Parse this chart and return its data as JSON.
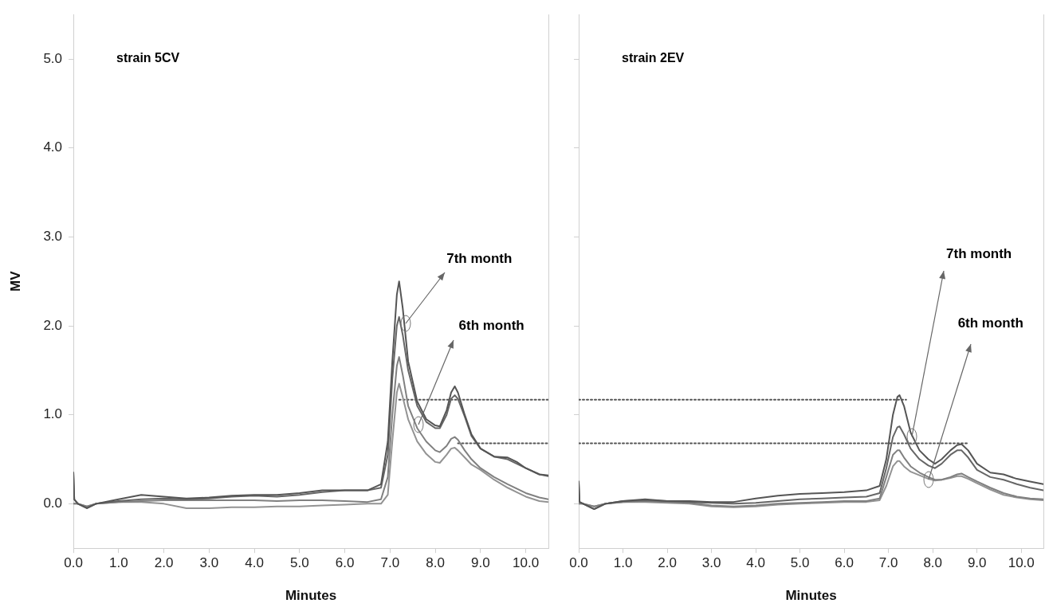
{
  "chart_data": [
    {
      "type": "line",
      "title": "strain 5CV",
      "xlabel": "Minutes",
      "ylabel": "MV",
      "xlim": [
        0,
        10.5
      ],
      "ylim": [
        -0.5,
        5.5
      ],
      "xticks": [
        {
          "value": 0,
          "label": "0.0"
        },
        {
          "value": 1,
          "label": "1.0"
        },
        {
          "value": 2,
          "label": "2.0"
        },
        {
          "value": 3,
          "label": "3.0"
        },
        {
          "value": 4,
          "label": "4.0"
        },
        {
          "value": 5,
          "label": "5.0"
        },
        {
          "value": 6,
          "label": "6.0"
        },
        {
          "value": 7,
          "label": "7.0"
        },
        {
          "value": 8,
          "label": "8.0"
        },
        {
          "value": 9,
          "label": "9.0"
        },
        {
          "value": 10,
          "label": "10.0"
        }
      ],
      "yticks": [
        {
          "value": 0,
          "label": "0.0"
        },
        {
          "value": 1,
          "label": "1.0"
        },
        {
          "value": 2,
          "label": "2.0"
        },
        {
          "value": 3,
          "label": "3.0"
        },
        {
          "value": 4,
          "label": "4.0"
        },
        {
          "value": 5,
          "label": "5.0"
        }
      ],
      "x": [
        0,
        0.02,
        0.1,
        0.3,
        0.5,
        1.0,
        1.5,
        2.0,
        2.5,
        3.0,
        3.5,
        4.0,
        4.5,
        5.0,
        5.5,
        6.0,
        6.5,
        6.8,
        6.95,
        7.05,
        7.15,
        7.2,
        7.28,
        7.4,
        7.6,
        7.8,
        8.0,
        8.1,
        8.25,
        8.35,
        8.43,
        8.5,
        8.65,
        8.8,
        9.0,
        9.3,
        9.6,
        9.8,
        10.0,
        10.3,
        10.5
      ],
      "series": [
        {
          "color": "#555555",
          "values": [
            0.35,
            0.05,
            0,
            -0.05,
            0,
            0.05,
            0.1,
            0.08,
            0.06,
            0.07,
            0.09,
            0.1,
            0.1,
            0.12,
            0.15,
            0.15,
            0.15,
            0.22,
            0.7,
            1.6,
            2.35,
            2.5,
            2.2,
            1.6,
            1.15,
            0.95,
            0.88,
            0.87,
            1.05,
            1.25,
            1.32,
            1.25,
            1.0,
            0.78,
            0.62,
            0.53,
            0.52,
            0.47,
            0.4,
            0.33,
            0.32
          ]
        },
        {
          "color": "#666666",
          "values": [
            0.35,
            0.05,
            0,
            -0.05,
            0,
            0.03,
            0.05,
            0.06,
            0.05,
            0.06,
            0.08,
            0.09,
            0.08,
            0.1,
            0.13,
            0.15,
            0.15,
            0.18,
            0.55,
            1.4,
            2.0,
            2.1,
            1.9,
            1.5,
            1.1,
            0.92,
            0.85,
            0.85,
            1.0,
            1.18,
            1.22,
            1.18,
            0.98,
            0.76,
            0.62,
            0.53,
            0.5,
            0.45,
            0.4,
            0.33,
            0.31
          ]
        },
        {
          "color": "#808080",
          "values": [
            0,
            0,
            0,
            -0.03,
            0,
            0.02,
            0.03,
            0.04,
            0.04,
            0.04,
            0.04,
            0.04,
            0.03,
            0.04,
            0.04,
            0.03,
            0.02,
            0.05,
            0.3,
            1.0,
            1.55,
            1.65,
            1.45,
            1.1,
            0.85,
            0.7,
            0.6,
            0.58,
            0.65,
            0.73,
            0.75,
            0.72,
            0.6,
            0.5,
            0.4,
            0.3,
            0.22,
            0.17,
            0.12,
            0.07,
            0.05
          ]
        },
        {
          "color": "#939393",
          "values": [
            0,
            0,
            0,
            -0.03,
            0,
            0.02,
            0.02,
            0.0,
            -0.05,
            -0.05,
            -0.04,
            -0.04,
            -0.03,
            -0.03,
            -0.02,
            -0.01,
            0,
            0.0,
            0.1,
            0.7,
            1.25,
            1.35,
            1.2,
            0.95,
            0.7,
            0.56,
            0.47,
            0.46,
            0.55,
            0.62,
            0.63,
            0.6,
            0.52,
            0.44,
            0.38,
            0.27,
            0.18,
            0.13,
            0.08,
            0.03,
            0.02
          ]
        },
        {
          "type": "line",
          "line_style": "dotted",
          "color": "#555555",
          "x": [
            7.2,
            10.5
          ],
          "values": [
            1.17,
            1.17
          ]
        },
        {
          "type": "line",
          "line_style": "dotted",
          "color": "#555555",
          "x": [
            8.5,
            10.5
          ],
          "values": [
            0.68,
            0.68
          ]
        }
      ],
      "annotations": [
        {
          "text": "7th month",
          "x": 7.35,
          "y": 2.03
        },
        {
          "text": "6th month",
          "x": 7.62,
          "y": 0.89
        }
      ],
      "marker": "none",
      "line_style": "solid",
      "legend": false
    },
    {
      "type": "line",
      "title": "strain 2EV",
      "xlabel": "Minutes",
      "xlim": [
        0,
        10.5
      ],
      "ylim": [
        -0.5,
        5.5
      ],
      "tick_labels": "x",
      "xticks": [
        {
          "value": 0,
          "label": "0.0"
        },
        {
          "value": 1,
          "label": "1.0"
        },
        {
          "value": 2,
          "label": "2.0"
        },
        {
          "value": 3,
          "label": "3.0"
        },
        {
          "value": 4,
          "label": "4.0"
        },
        {
          "value": 5,
          "label": "5.0"
        },
        {
          "value": 6,
          "label": "6.0"
        },
        {
          "value": 7,
          "label": "7.0"
        },
        {
          "value": 8,
          "label": "8.0"
        },
        {
          "value": 9,
          "label": "9.0"
        },
        {
          "value": 10,
          "label": "10.0"
        }
      ],
      "yticks": [
        {
          "value": 0,
          "label": null
        },
        {
          "value": 1,
          "label": null
        },
        {
          "value": 2,
          "label": null
        },
        {
          "value": 3,
          "label": null
        },
        {
          "value": 4,
          "label": null
        },
        {
          "value": 5,
          "label": null
        }
      ],
      "x": [
        0,
        0.02,
        0.1,
        0.35,
        0.6,
        1.0,
        1.5,
        2.0,
        2.5,
        3.0,
        3.5,
        4.0,
        4.5,
        5.0,
        5.5,
        6.0,
        6.5,
        6.8,
        6.95,
        7.1,
        7.2,
        7.25,
        7.35,
        7.5,
        7.7,
        7.9,
        8.05,
        8.2,
        8.4,
        8.55,
        8.65,
        8.8,
        9.0,
        9.3,
        9.6,
        9.9,
        10.2,
        10.5
      ],
      "series": [
        {
          "color": "#555555",
          "values": [
            0.25,
            0.02,
            0,
            -0.06,
            0,
            0.03,
            0.05,
            0.03,
            0.03,
            0.02,
            0.02,
            0.06,
            0.09,
            0.11,
            0.12,
            0.13,
            0.15,
            0.2,
            0.5,
            1.0,
            1.2,
            1.22,
            1.1,
            0.8,
            0.6,
            0.5,
            0.45,
            0.5,
            0.6,
            0.66,
            0.67,
            0.6,
            0.45,
            0.35,
            0.33,
            0.28,
            0.25,
            0.22
          ]
        },
        {
          "color": "#666666",
          "values": [
            0.25,
            0.02,
            0,
            -0.06,
            0,
            0.03,
            0.04,
            0.03,
            0.02,
            0.01,
            0,
            0.01,
            0.03,
            0.05,
            0.06,
            0.07,
            0.08,
            0.12,
            0.4,
            0.75,
            0.86,
            0.87,
            0.78,
            0.62,
            0.5,
            0.43,
            0.4,
            0.45,
            0.55,
            0.6,
            0.6,
            0.52,
            0.38,
            0.3,
            0.27,
            0.22,
            0.18,
            0.15
          ]
        },
        {
          "color": "#808080",
          "values": [
            0,
            0,
            0,
            -0.03,
            0,
            0.02,
            0.03,
            0.02,
            0.01,
            -0.02,
            -0.03,
            -0.02,
            0,
            0.01,
            0.02,
            0.03,
            0.03,
            0.06,
            0.3,
            0.55,
            0.6,
            0.6,
            0.52,
            0.42,
            0.35,
            0.3,
            0.27,
            0.27,
            0.3,
            0.33,
            0.34,
            0.3,
            0.25,
            0.18,
            0.12,
            0.08,
            0.06,
            0.05
          ]
        },
        {
          "color": "#939393",
          "values": [
            0,
            0,
            0,
            -0.03,
            0,
            0.02,
            0.02,
            0.01,
            0,
            -0.03,
            -0.04,
            -0.03,
            -0.01,
            0,
            0.01,
            0.02,
            0.02,
            0.04,
            0.2,
            0.42,
            0.48,
            0.48,
            0.42,
            0.36,
            0.32,
            0.28,
            0.26,
            0.27,
            0.29,
            0.31,
            0.31,
            0.28,
            0.23,
            0.16,
            0.1,
            0.07,
            0.05,
            0.04
          ]
        },
        {
          "type": "line",
          "line_style": "dotted",
          "color": "#555555",
          "x": [
            0,
            7.4
          ],
          "values": [
            1.17,
            1.17
          ]
        },
        {
          "type": "line",
          "line_style": "dotted",
          "color": "#555555",
          "x": [
            0,
            8.8
          ],
          "values": [
            0.68,
            0.68
          ]
        }
      ],
      "annotations": [
        {
          "text": "7th month",
          "x": 7.53,
          "y": 0.76
        },
        {
          "text": "6th month",
          "x": 7.9,
          "y": 0.27
        }
      ],
      "marker": "none",
      "line_style": "solid",
      "legend": false
    }
  ]
}
